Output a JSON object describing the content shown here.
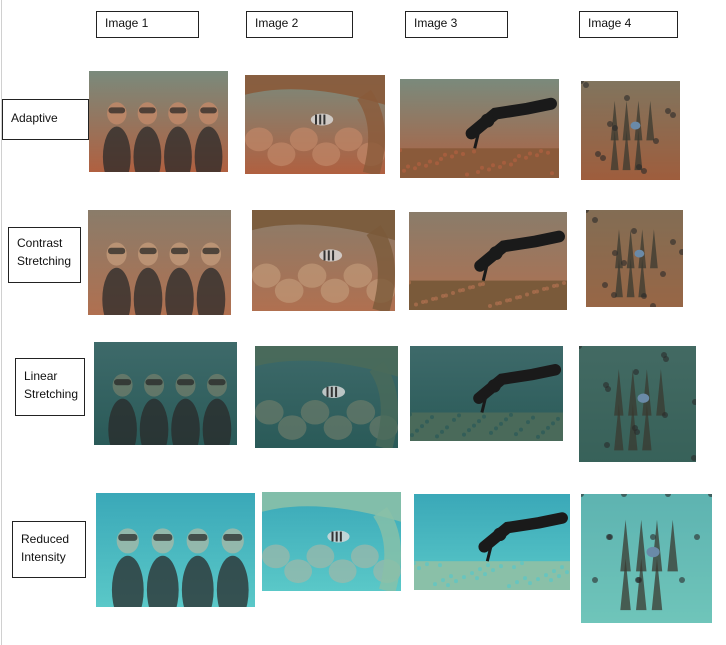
{
  "columns": [
    "Image 1",
    "Image 2",
    "Image 3",
    "Image 4"
  ],
  "rows": [
    {
      "label": "Adaptive"
    },
    {
      "label": "Contrast\nStretching"
    },
    {
      "label": "Linear\nStretching"
    },
    {
      "label": "Reduced\nIntensity"
    }
  ],
  "images": [
    {
      "name": "divers-group",
      "description": "group of divers"
    },
    {
      "name": "fish-rock",
      "description": "striped fish under rocks"
    },
    {
      "name": "diver-reef",
      "description": "diver over reef"
    },
    {
      "name": "coral-closeup",
      "description": "coral close-up"
    }
  ],
  "palettes": [
    {
      "water": "#7a8a7c",
      "tint": "#b06040",
      "bottom": "#8a5a3a",
      "skin": "#c08868"
    },
    {
      "water": "#8a7c6a",
      "tint": "#b07050",
      "bottom": "#7a5a3a",
      "skin": "#c09878"
    },
    {
      "water": "#3e6a6a",
      "tint": "#2a5a58",
      "bottom": "#4a6a5a",
      "skin": "#6a7a6a"
    },
    {
      "water": "#3aa8b8",
      "tint": "#5ac8c8",
      "bottom": "#8ac0a8",
      "skin": "#a0b8a8"
    }
  ]
}
